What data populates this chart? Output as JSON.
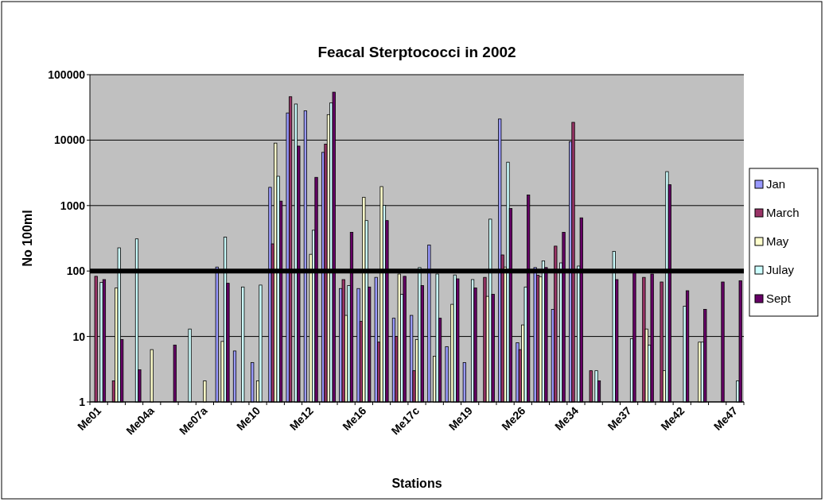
{
  "chart_data": {
    "type": "bar",
    "title": "Feacal Sterptococci in 2002",
    "xlabel": "Stations",
    "ylabel": "No 100ml",
    "categories": [
      "Me01",
      null,
      null,
      "Me04a",
      null,
      null,
      "Me07a",
      null,
      null,
      "Me10",
      null,
      null,
      "Me12",
      null,
      null,
      "Me16",
      null,
      null,
      "Me17c",
      null,
      null,
      "Me19",
      null,
      null,
      "Me26",
      null,
      null,
      "Me34",
      null,
      null,
      "Me37",
      null,
      null,
      "Me42",
      null,
      null,
      "Me47"
    ],
    "series": [
      {
        "name": "Jan",
        "color": "#9999ff",
        "values": [
          null,
          null,
          null,
          null,
          null,
          null,
          null,
          115,
          6,
          4,
          1900,
          26000,
          28000,
          6500,
          54,
          54,
          80,
          19,
          21,
          250,
          7,
          4,
          null,
          21000,
          8,
          113,
          26,
          9500,
          null,
          null,
          null,
          null,
          null,
          null,
          null,
          null,
          null
        ]
      },
      {
        "name": "March",
        "color": "#993366",
        "values": [
          83,
          2.1,
          null,
          null,
          null,
          null,
          null,
          null,
          null,
          null,
          260,
          46000,
          null,
          8700,
          74,
          17,
          8.2,
          10,
          3,
          null,
          null,
          null,
          80,
          176,
          6.3,
          86,
          240,
          18700,
          3,
          null,
          null,
          80,
          68,
          null,
          null,
          null,
          null
        ]
      },
      {
        "name": "May",
        "color": "#ffffcc",
        "values": [
          null,
          55,
          null,
          6.3,
          null,
          null,
          2.1,
          8.4,
          null,
          2.1,
          9000,
          null,
          180,
          24500,
          21,
          1340,
          1950,
          90,
          9,
          5,
          31,
          null,
          41,
          115,
          15,
          82,
          null,
          null,
          null,
          null,
          null,
          13,
          3,
          null,
          8.2,
          null,
          null
        ]
      },
      {
        "name": "Julay",
        "color": "#ccffff",
        "values": [
          67,
          226,
          310,
          null,
          null,
          13,
          null,
          330,
          57,
          61,
          2800,
          35600,
          420,
          37000,
          60,
          590,
          1010,
          44,
          113,
          90,
          87,
          74,
          620,
          4600,
          57,
          143,
          133,
          119,
          3,
          200,
          9.2,
          7.4,
          3300,
          29,
          8.2,
          null,
          2.1
        ]
      },
      {
        "name": "Sept",
        "color": "#660066",
        "values": [
          74,
          9,
          3.1,
          null,
          7.4,
          null,
          null,
          65,
          null,
          null,
          1170,
          8100,
          2700,
          54000,
          390,
          57,
          590,
          83,
          60,
          19,
          76,
          55,
          44,
          900,
          1450,
          113,
          390,
          650,
          2.1,
          74,
          94,
          90,
          2080,
          50,
          26,
          68,
          71
        ]
      }
    ],
    "ylim": [
      1,
      100000
    ],
    "yticks": [
      1,
      10,
      100,
      1000,
      10000,
      100000
    ],
    "log": true,
    "grid": "y",
    "legend": "right",
    "ref_lines": [
      {
        "axis": "y",
        "value": 100,
        "color": "#000000"
      }
    ]
  }
}
